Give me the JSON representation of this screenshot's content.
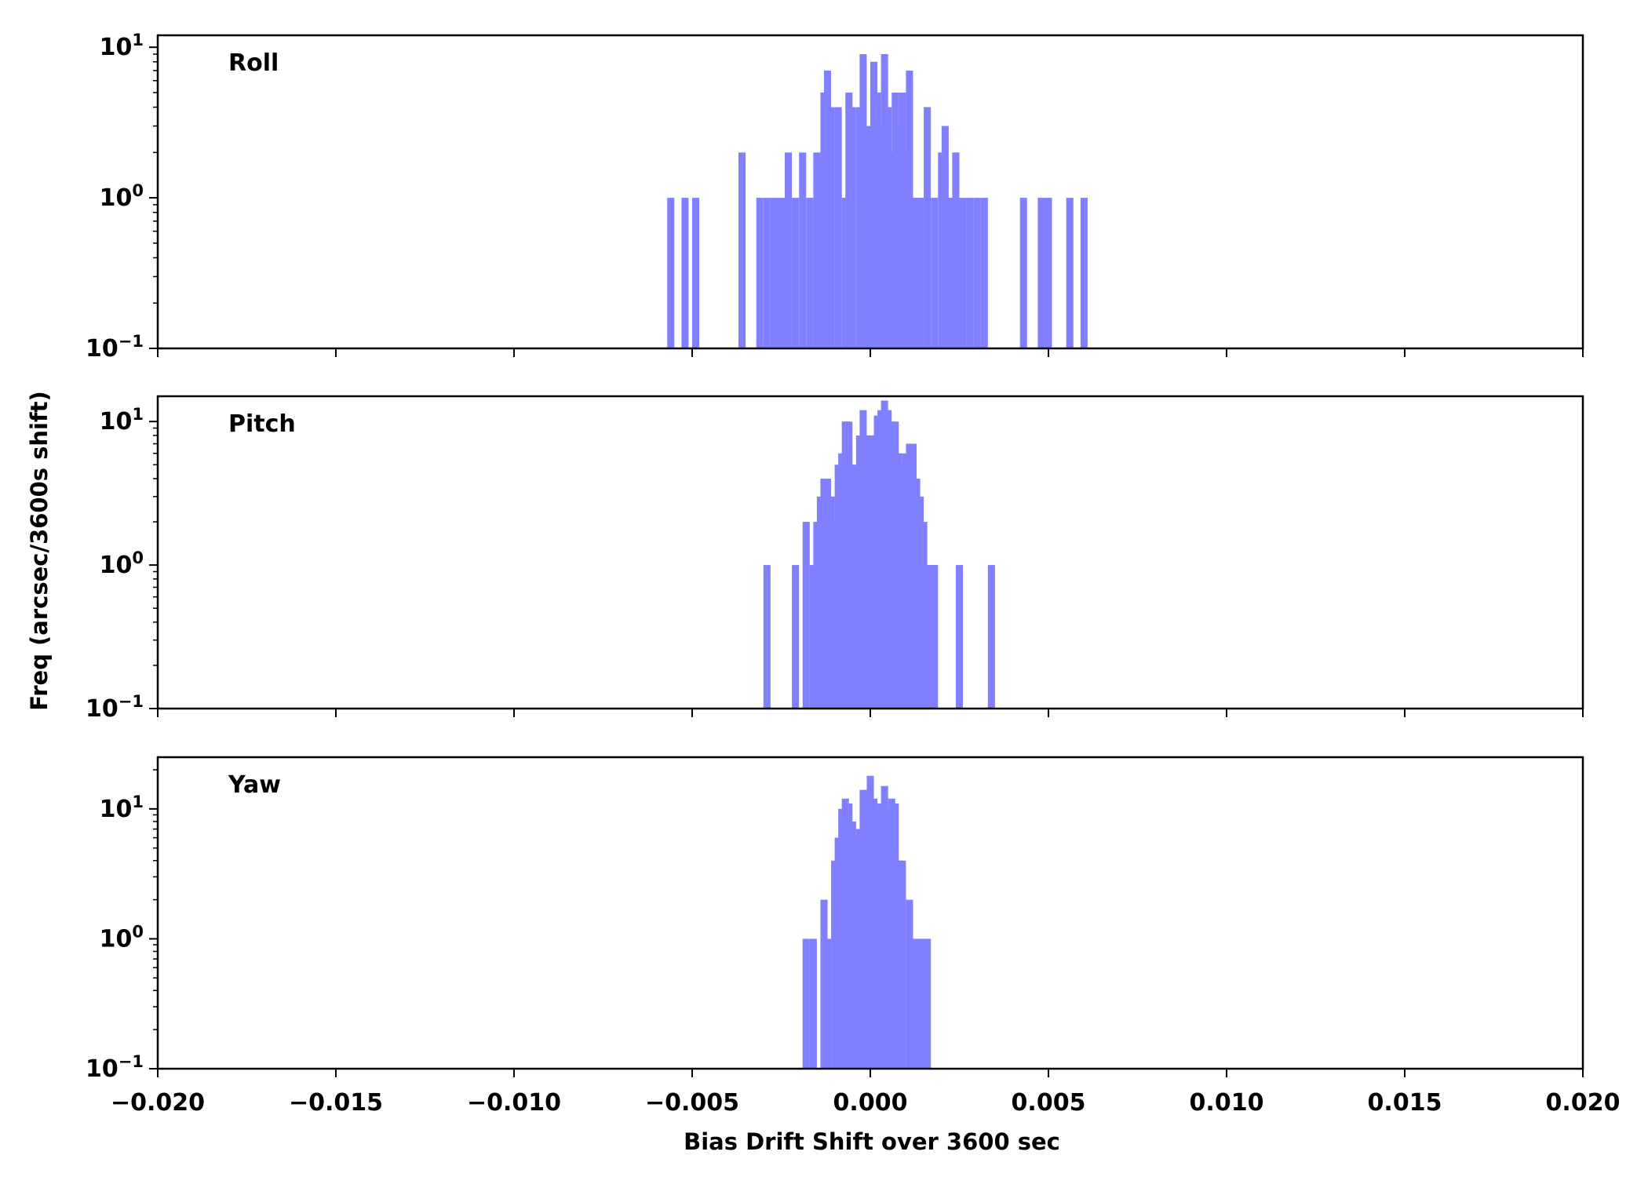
{
  "chart_data": {
    "type": "histogram",
    "xlabel": "Bias Drift Shift over 3600 sec",
    "ylabel": "Freq (arcsec/3600s shift)",
    "xlim": [
      -0.02,
      0.02
    ],
    "x_ticks": [
      "−0.020",
      "−0.015",
      "−0.010",
      "−0.005",
      "0.000",
      "0.005",
      "0.010",
      "0.015",
      "0.020"
    ],
    "x_tick_values": [
      -0.02,
      -0.015,
      -0.01,
      -0.005,
      0.0,
      0.005,
      0.01,
      0.015,
      0.02
    ],
    "y_scale": "log",
    "y_ticks": [
      {
        "base": "10",
        "exp": "−1"
      },
      {
        "base": "10",
        "exp": "0"
      },
      {
        "base": "10",
        "exp": "1"
      }
    ],
    "y_tick_values": [
      0.1,
      1,
      10
    ],
    "bar_color": "#8080ff",
    "bin_width": 0.0002,
    "panels": [
      {
        "label": "Roll",
        "ylim": [
          0.1,
          12
        ],
        "bins": [
          [
            -0.0057,
            1
          ],
          [
            -0.0053,
            1
          ],
          [
            -0.005,
            1
          ],
          [
            -0.0037,
            2
          ],
          [
            -0.0032,
            1
          ],
          [
            -0.003,
            1
          ],
          [
            -0.0028,
            1
          ],
          [
            -0.0026,
            1
          ],
          [
            -0.0024,
            2
          ],
          [
            -0.0022,
            1
          ],
          [
            -0.002,
            2
          ],
          [
            -0.0018,
            1
          ],
          [
            -0.0016,
            2
          ],
          [
            -0.0014,
            5
          ],
          [
            -0.0013,
            7
          ],
          [
            -0.0012,
            4
          ],
          [
            -0.001,
            4
          ],
          [
            -0.0008,
            1
          ],
          [
            -0.0007,
            5
          ],
          [
            -0.0006,
            4
          ],
          [
            -0.0004,
            4
          ],
          [
            -0.0003,
            9
          ],
          [
            -0.0002,
            3
          ],
          [
            0.0,
            8
          ],
          [
            0.0001,
            5
          ],
          [
            0.0002,
            3
          ],
          [
            0.0003,
            9
          ],
          [
            0.0004,
            4
          ],
          [
            0.0005,
            2
          ],
          [
            0.0006,
            5
          ],
          [
            0.0007,
            3
          ],
          [
            0.0008,
            5
          ],
          [
            0.0009,
            2
          ],
          [
            0.001,
            7
          ],
          [
            0.0011,
            1
          ],
          [
            0.0012,
            1
          ],
          [
            0.0013,
            1
          ],
          [
            0.0015,
            4
          ],
          [
            0.0017,
            1
          ],
          [
            0.0019,
            2
          ],
          [
            0.002,
            3
          ],
          [
            0.0021,
            1
          ],
          [
            0.0022,
            1
          ],
          [
            0.0023,
            2
          ],
          [
            0.0025,
            1
          ],
          [
            0.0027,
            1
          ],
          [
            0.0029,
            1
          ],
          [
            0.0031,
            1
          ],
          [
            0.0042,
            1
          ],
          [
            0.0047,
            1
          ],
          [
            0.0049,
            1
          ],
          [
            0.0055,
            1
          ],
          [
            0.0059,
            1
          ]
        ]
      },
      {
        "label": "Pitch",
        "ylim": [
          0.1,
          15
        ],
        "bins": [
          [
            -0.003,
            1
          ],
          [
            -0.0022,
            1
          ],
          [
            -0.0019,
            2
          ],
          [
            -0.0017,
            1
          ],
          [
            -0.0016,
            2
          ],
          [
            -0.0015,
            3
          ],
          [
            -0.0014,
            4
          ],
          [
            -0.0013,
            4
          ],
          [
            -0.0012,
            3
          ],
          [
            -0.0011,
            2
          ],
          [
            -0.001,
            5
          ],
          [
            -0.0009,
            6
          ],
          [
            -0.0008,
            10
          ],
          [
            -0.0007,
            10
          ],
          [
            -0.0006,
            5
          ],
          [
            -0.0005,
            5
          ],
          [
            -0.0004,
            8
          ],
          [
            -0.0003,
            12
          ],
          [
            -0.0002,
            7
          ],
          [
            -0.0001,
            8
          ],
          [
            0.0,
            8
          ],
          [
            0.0001,
            11
          ],
          [
            0.0002,
            12
          ],
          [
            0.0003,
            14
          ],
          [
            0.0004,
            12
          ],
          [
            0.0005,
            10
          ],
          [
            0.0006,
            10
          ],
          [
            0.0007,
            6
          ],
          [
            0.0008,
            5
          ],
          [
            0.0009,
            6
          ],
          [
            0.001,
            7
          ],
          [
            0.0011,
            7
          ],
          [
            0.0012,
            4
          ],
          [
            0.0013,
            3
          ],
          [
            0.0014,
            2
          ],
          [
            0.0015,
            1
          ],
          [
            0.0016,
            1
          ],
          [
            0.0017,
            1
          ],
          [
            0.0024,
            1
          ],
          [
            0.0033,
            1
          ]
        ]
      },
      {
        "label": "Yaw",
        "ylim": [
          0.1,
          25
        ],
        "bins": [
          [
            -0.0019,
            1
          ],
          [
            -0.0017,
            1
          ],
          [
            -0.0014,
            2
          ],
          [
            -0.0013,
            1
          ],
          [
            -0.0011,
            4
          ],
          [
            -0.001,
            6
          ],
          [
            -0.0009,
            10
          ],
          [
            -0.0008,
            12
          ],
          [
            -0.0007,
            11
          ],
          [
            -0.0006,
            8
          ],
          [
            -0.0005,
            6
          ],
          [
            -0.0004,
            7
          ],
          [
            -0.0003,
            14
          ],
          [
            -0.0002,
            14
          ],
          [
            -0.0001,
            18
          ],
          [
            0.0,
            12
          ],
          [
            0.0001,
            10
          ],
          [
            0.0002,
            11
          ],
          [
            0.0003,
            15
          ],
          [
            0.0004,
            10
          ],
          [
            0.0005,
            12
          ],
          [
            0.0006,
            11
          ],
          [
            0.0007,
            4
          ],
          [
            0.0008,
            4
          ],
          [
            0.001,
            2
          ],
          [
            0.0011,
            1
          ],
          [
            0.0012,
            1
          ],
          [
            0.0013,
            1
          ],
          [
            0.0014,
            1
          ],
          [
            0.0015,
            1
          ]
        ]
      }
    ]
  }
}
